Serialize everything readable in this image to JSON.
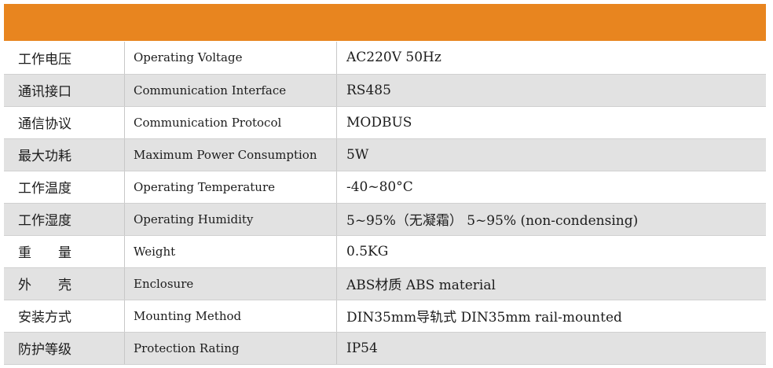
{
  "header": {
    "accent_color": "#e8851f"
  },
  "rows": [
    {
      "cn": "工作电压",
      "en": "Operating Voltage",
      "value": "AC220V 50Hz"
    },
    {
      "cn": "通讯接口",
      "en": "Communication Interface",
      "value": "RS485"
    },
    {
      "cn": "通信协议",
      "en": "Communication Protocol",
      "value": "MODBUS"
    },
    {
      "cn": "最大功耗",
      "en": "Maximum Power Consumption",
      "value": "5W"
    },
    {
      "cn": "工作温度",
      "en": "Operating Temperature",
      "value": "-40~80°C"
    },
    {
      "cn": "工作湿度",
      "en": "Operating Humidity",
      "value": "5~95%（无凝霜）    5~95% (non-condensing)"
    },
    {
      "cn": "重　　量",
      "en": "Weight",
      "value": "0.5KG"
    },
    {
      "cn": "外　　壳",
      "en": "Enclosure",
      "value": "ABS材质      ABS material"
    },
    {
      "cn": "安装方式",
      "en": "Mounting Method",
      "value": "DIN35mm导轨式   DIN35mm rail-mounted"
    },
    {
      "cn": "防护等级",
      "en": "Protection Rating",
      "value": "IP54"
    }
  ]
}
